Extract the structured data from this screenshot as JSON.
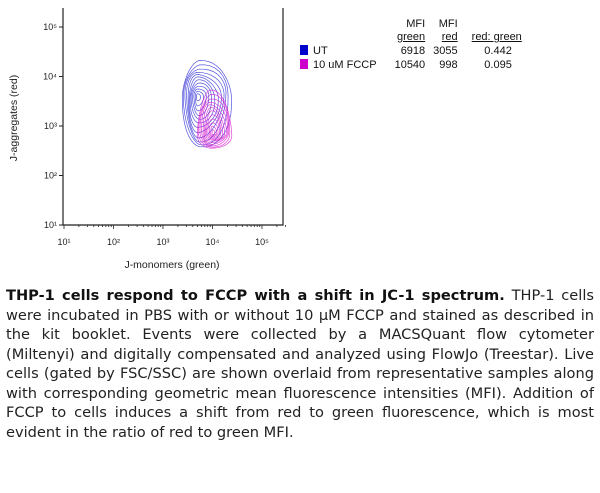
{
  "chart_data": {
    "type": "contour",
    "xlabel": "J-monomers (green)",
    "ylabel": "J-aggregates (red)",
    "x_scale": "log",
    "y_scale": "log",
    "xlim": [
      10,
      100000
    ],
    "ylim": [
      10,
      100000
    ],
    "x_ticks": [
      "10¹",
      "10²",
      "10³",
      "10⁴",
      "10⁵"
    ],
    "y_ticks": [
      "10¹",
      "10²",
      "10³",
      "10⁴",
      "10⁵"
    ],
    "series": [
      {
        "name": "UT",
        "color": "#2b2bd6",
        "center": [
          5500,
          4000
        ],
        "x_range": [
          2500,
          25000
        ],
        "y_range": [
          350,
          20000
        ]
      },
      {
        "name": "10 uM FCCP",
        "color": "#d61bd0",
        "center": [
          9000,
          700
        ],
        "x_range": [
          5000,
          25000
        ],
        "y_range": [
          350,
          5000
        ]
      }
    ]
  },
  "table": {
    "headers": [
      [
        "",
        ""
      ],
      [
        "MFI",
        "green"
      ],
      [
        "MFI",
        "red"
      ],
      [
        "",
        "red: green"
      ]
    ],
    "rows": [
      {
        "label": "UT",
        "color": "#0000cc",
        "green": "6918",
        "red": "3055",
        "ratio": "0.442"
      },
      {
        "label": "10 uM FCCP",
        "color": "#cc00cc",
        "green": "10540",
        "red": "998",
        "ratio": "0.095"
      }
    ]
  },
  "caption": {
    "bold": "THP-1 cells respond to FCCP with a shift in JC-1 spectrum.",
    "text": " THP-1 cells were incubated in PBS with or without 10 µM FCCP and stained as described in the kit booklet. Events were collected by a MACSQuant flow cytometer (Miltenyi) and digitally compensated and analyzed using FlowJo (Treestar). Live cells (gated by FSC/SSC) are shown overlaid from representative samples along with corresponding geometric mean fluorescence intensities (MFI). Addition of FCCP to cells induces a shift from red to green fluorescence, which is most evident in the ratio of red to green MFI."
  }
}
